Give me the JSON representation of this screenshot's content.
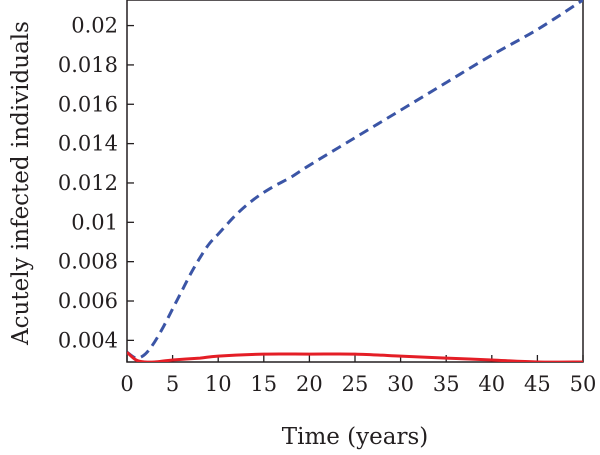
{
  "chart_data": {
    "type": "line",
    "xlabel": "Time (years)",
    "ylabel": "Acutely infected individuals",
    "xlim": [
      0,
      50
    ],
    "ylim": [
      0.0029,
      0.0213
    ],
    "grid": false,
    "x_ticks": [
      0,
      5,
      10,
      15,
      20,
      25,
      30,
      35,
      40,
      45,
      50
    ],
    "x_tick_labels": [
      "0",
      "5",
      "10",
      "15",
      "20",
      "25",
      "30",
      "35",
      "40",
      "45",
      "50"
    ],
    "y_ticks": [
      0.004,
      0.006,
      0.008,
      0.01,
      0.012,
      0.014,
      0.016,
      0.018,
      0.02
    ],
    "y_tick_labels": [
      "0.004",
      "0.006",
      "0.008",
      "0.01",
      "0.012",
      "0.014",
      "0.016",
      "0.018",
      "0.02"
    ],
    "series": [
      {
        "color": "#3b55a6",
        "style": "dashed",
        "x": [
          0,
          1,
          2,
          3,
          4,
          5,
          6,
          7,
          8,
          9,
          10,
          12,
          14,
          16,
          18,
          20,
          25,
          30,
          35,
          40,
          45,
          50
        ],
        "y": [
          0.0034,
          0.0031,
          0.0033,
          0.0039,
          0.0047,
          0.0056,
          0.0065,
          0.0074,
          0.0082,
          0.0089,
          0.0094,
          0.0104,
          0.0112,
          0.0118,
          0.0123,
          0.0129,
          0.0143,
          0.0157,
          0.0171,
          0.0185,
          0.0198,
          0.0213
        ]
      },
      {
        "color": "#e41e26",
        "style": "solid",
        "x": [
          0,
          1,
          2,
          3,
          5,
          8,
          10,
          15,
          20,
          25,
          30,
          35,
          40,
          45,
          50
        ],
        "y": [
          0.0034,
          0.003,
          0.0029,
          0.0029,
          0.003,
          0.0031,
          0.0032,
          0.0033,
          0.0033,
          0.0033,
          0.0032,
          0.0031,
          0.003,
          0.0029,
          0.0029
        ]
      }
    ]
  }
}
